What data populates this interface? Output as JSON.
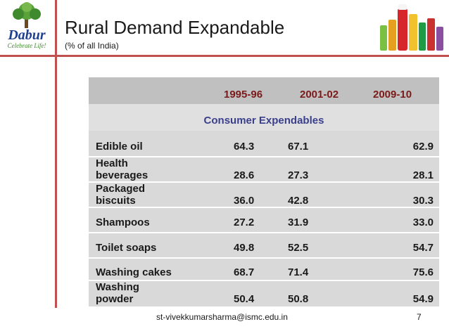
{
  "logo": {
    "name": "Dabur",
    "tagline": "Celebrate Life!"
  },
  "slide": {
    "title": "Rural Demand Expandable",
    "subtitle": "(% of all India)"
  },
  "table": {
    "columns": [
      "1995-96",
      "2001-02",
      "2009-10"
    ],
    "category": "Consumer Expendables",
    "rows": [
      {
        "line1": "Edible oil",
        "line2": "",
        "values": [
          "64.3",
          "67.1",
          "62.9"
        ]
      },
      {
        "line1": "Health",
        "line2": "beverages",
        "values": [
          "28.6",
          "27.3",
          "28.1"
        ]
      },
      {
        "line1": "Packaged",
        "line2": "biscuits",
        "values": [
          "36.0",
          "42.8",
          "30.3"
        ]
      },
      {
        "line1": "Shampoos",
        "line2": "",
        "values": [
          "27.2",
          "31.9",
          "33.0"
        ]
      },
      {
        "line1": "Toilet soaps",
        "line2": "",
        "values": [
          "49.8",
          "52.5",
          "54.7"
        ]
      },
      {
        "line1": "Washing cakes",
        "line2": "",
        "values": [
          "68.7",
          "71.4",
          "75.6"
        ]
      },
      {
        "line1": "Washing",
        "line2": "powder",
        "values": [
          "50.4",
          "50.8",
          "54.9"
        ]
      }
    ]
  },
  "footer": {
    "email": "st-vivekkumarsharma@ismc.edu.in",
    "page": "7"
  },
  "colors": {
    "accent": "#c0504d",
    "header_text": "#7b1a1a",
    "category_text": "#3a3f8c",
    "logo_green": "#3f8a2e",
    "logo_blue": "#1f3f8f"
  }
}
